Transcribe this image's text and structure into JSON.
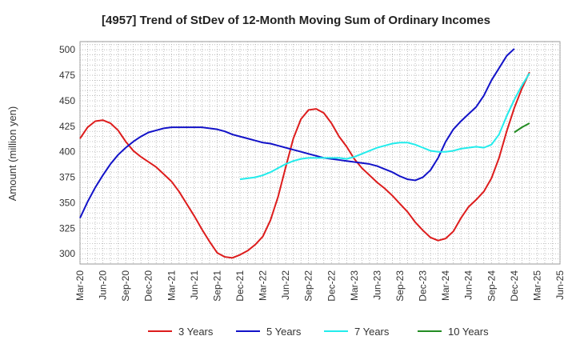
{
  "chart_data": {
    "type": "line",
    "title": "[4957]  Trend of StDev of 12-Month Moving Sum of Ordinary Incomes",
    "ylabel": "Amount (million yen)",
    "xlabel": "",
    "ylim": [
      290,
      508
    ],
    "yticks": [
      300,
      325,
      350,
      375,
      400,
      425,
      450,
      475,
      500
    ],
    "x_start": "2020-03",
    "x_end": "2025-06",
    "xticks": [
      "Mar-20",
      "Jun-20",
      "Sep-20",
      "Dec-20",
      "Mar-21",
      "Jun-21",
      "Sep-21",
      "Dec-21",
      "Mar-22",
      "Jun-22",
      "Sep-22",
      "Dec-22",
      "Mar-23",
      "Jun-23",
      "Sep-23",
      "Dec-23",
      "Mar-24",
      "Jun-24",
      "Sep-24",
      "Dec-24",
      "Mar-25",
      "Jun-25"
    ],
    "grid": true,
    "legend_position": "bottom",
    "series": [
      {
        "name": "3 Years",
        "color": "#dd1c1c",
        "start": "2020-03",
        "values": [
          413,
          424,
          430,
          431,
          428,
          421,
          410,
          401,
          395,
          390,
          385,
          378,
          371,
          361,
          349,
          337,
          324,
          312,
          301,
          297,
          296,
          299,
          303,
          309,
          317,
          333,
          356,
          385,
          413,
          432,
          441,
          442,
          438,
          428,
          415,
          405,
          393,
          384,
          377,
          370,
          364,
          357,
          349,
          341,
          331,
          323,
          316,
          313,
          315,
          322,
          335,
          346,
          353,
          361,
          374,
          394,
          420,
          443,
          462,
          478
        ]
      },
      {
        "name": "5 Years",
        "color": "#1212c8",
        "start": "2020-03",
        "values": [
          335,
          351,
          365,
          377,
          388,
          397,
          404,
          410,
          415,
          419,
          421,
          423,
          424,
          424,
          424,
          424,
          424,
          423,
          422,
          420,
          417,
          415,
          413,
          411,
          409,
          408,
          406,
          404,
          402,
          400,
          398,
          396,
          394,
          393,
          392,
          391,
          390,
          389,
          388,
          386,
          383,
          380,
          376,
          373,
          372,
          375,
          382,
          394,
          410,
          422,
          430,
          437,
          444,
          455,
          470,
          482,
          494,
          501
        ]
      },
      {
        "name": "7 Years",
        "color": "#22ecec",
        "start": "2021-12",
        "values": [
          373,
          374,
          375,
          377,
          380,
          384,
          388,
          391,
          393,
          394,
          394,
          394,
          394,
          394,
          393,
          395,
          398,
          401,
          404,
          406,
          408,
          409,
          409,
          407,
          404,
          401,
          400,
          400,
          401,
          403,
          404,
          405,
          404,
          407,
          417,
          435,
          451,
          465,
          477
        ]
      },
      {
        "name": "10 Years",
        "color": "#238c23",
        "start": "2024-12",
        "values": [
          419,
          424,
          428
        ]
      }
    ]
  }
}
